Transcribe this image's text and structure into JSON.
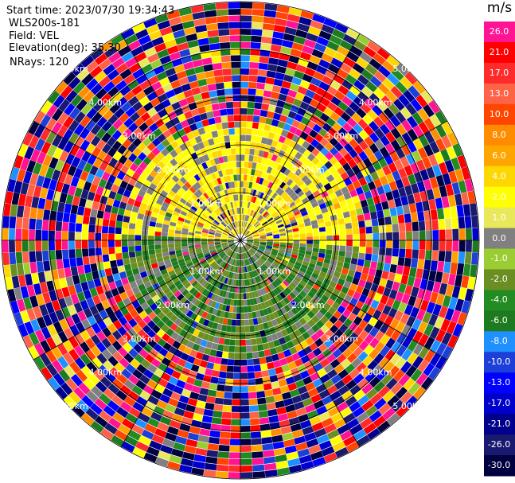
{
  "header": {
    "start_time": "Start time: 2023/07/30 19:34:43",
    "instrument": "WLS200s-181",
    "field": "Field: VEL",
    "elevation": "Elevation(deg): 35.30",
    "nrays": "NRays: 120"
  },
  "colorbar": {
    "unit": "m/s",
    "entries": [
      {
        "label": "26.0",
        "color": "#ff1493"
      },
      {
        "label": "21.0",
        "color": "#ff0000"
      },
      {
        "label": "17.0",
        "color": "#ff2a2a"
      },
      {
        "label": "13.0",
        "color": "#ff6347"
      },
      {
        "label": "10.0",
        "color": "#ff4500"
      },
      {
        "label": "8.0",
        "color": "#ff8c00"
      },
      {
        "label": "6.0",
        "color": "#ffa500"
      },
      {
        "label": "4.0",
        "color": "#ffd700"
      },
      {
        "label": "2.0",
        "color": "#ffff00"
      },
      {
        "label": "1.0",
        "color": "#e8e85a"
      },
      {
        "label": "0.0",
        "color": "#808080"
      },
      {
        "label": "-1.0",
        "color": "#9acd32"
      },
      {
        "label": "-2.0",
        "color": "#6b8e23"
      },
      {
        "label": "-4.0",
        "color": "#228b22"
      },
      {
        "label": "-6.0",
        "color": "#1e7a1e"
      },
      {
        "label": "-8.0",
        "color": "#1e90ff"
      },
      {
        "label": "-10.0",
        "color": "#1c3fd8"
      },
      {
        "label": "-13.0",
        "color": "#0000ff"
      },
      {
        "label": "-17.0",
        "color": "#0000cd"
      },
      {
        "label": "-21.0",
        "color": "#00008b"
      },
      {
        "label": "-26.0",
        "color": "#191970"
      },
      {
        "label": "-30.0",
        "color": "#000040"
      }
    ]
  },
  "chart_data": {
    "type": "heatmap",
    "projection": "polar PPI",
    "field": "VEL",
    "elevation_deg": 35.3,
    "nrays": 120,
    "range_rings": [
      {
        "label": "1.00km"
      },
      {
        "label": "2.00km"
      },
      {
        "label": "3.00km"
      },
      {
        "label": "4.00km"
      },
      {
        "label": "5.00km"
      }
    ],
    "gate_count": 36,
    "sector_summary": [
      {
        "sector": "north half, near range",
        "dominant_value_m_s": 2.0
      },
      {
        "sector": "south half, near range",
        "dominant_value_m_s": -4.0
      },
      {
        "sector": "outer range",
        "dominant_value_m_s": "noise (mixed)"
      }
    ]
  }
}
